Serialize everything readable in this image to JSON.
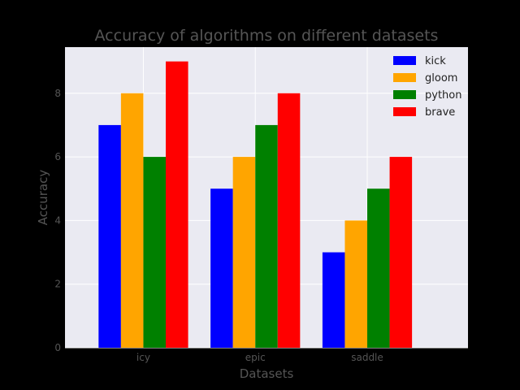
{
  "chart_data": {
    "type": "bar",
    "title": "Accuracy of algorithms on different datasets",
    "xlabel": "Datasets",
    "ylabel": "Accuracy",
    "categories": [
      "icy",
      "epic",
      "saddle"
    ],
    "series": [
      {
        "name": "kick",
        "values": [
          7,
          5,
          3
        ],
        "color": "#0000ff"
      },
      {
        "name": "gloom",
        "values": [
          8,
          6,
          4
        ],
        "color": "#ffa500"
      },
      {
        "name": "python",
        "values": [
          6,
          7,
          5
        ],
        "color": "#008000"
      },
      {
        "name": "brave",
        "values": [
          9,
          8,
          6
        ],
        "color": "#ff0000"
      }
    ],
    "ylim": [
      0,
      9.45
    ],
    "yticks": [
      "0",
      "2",
      "4",
      "6",
      "8"
    ],
    "grid": true,
    "legend_position": "top-right",
    "background_color": "#eaeaf2",
    "figure_background_color": "#000000"
  }
}
